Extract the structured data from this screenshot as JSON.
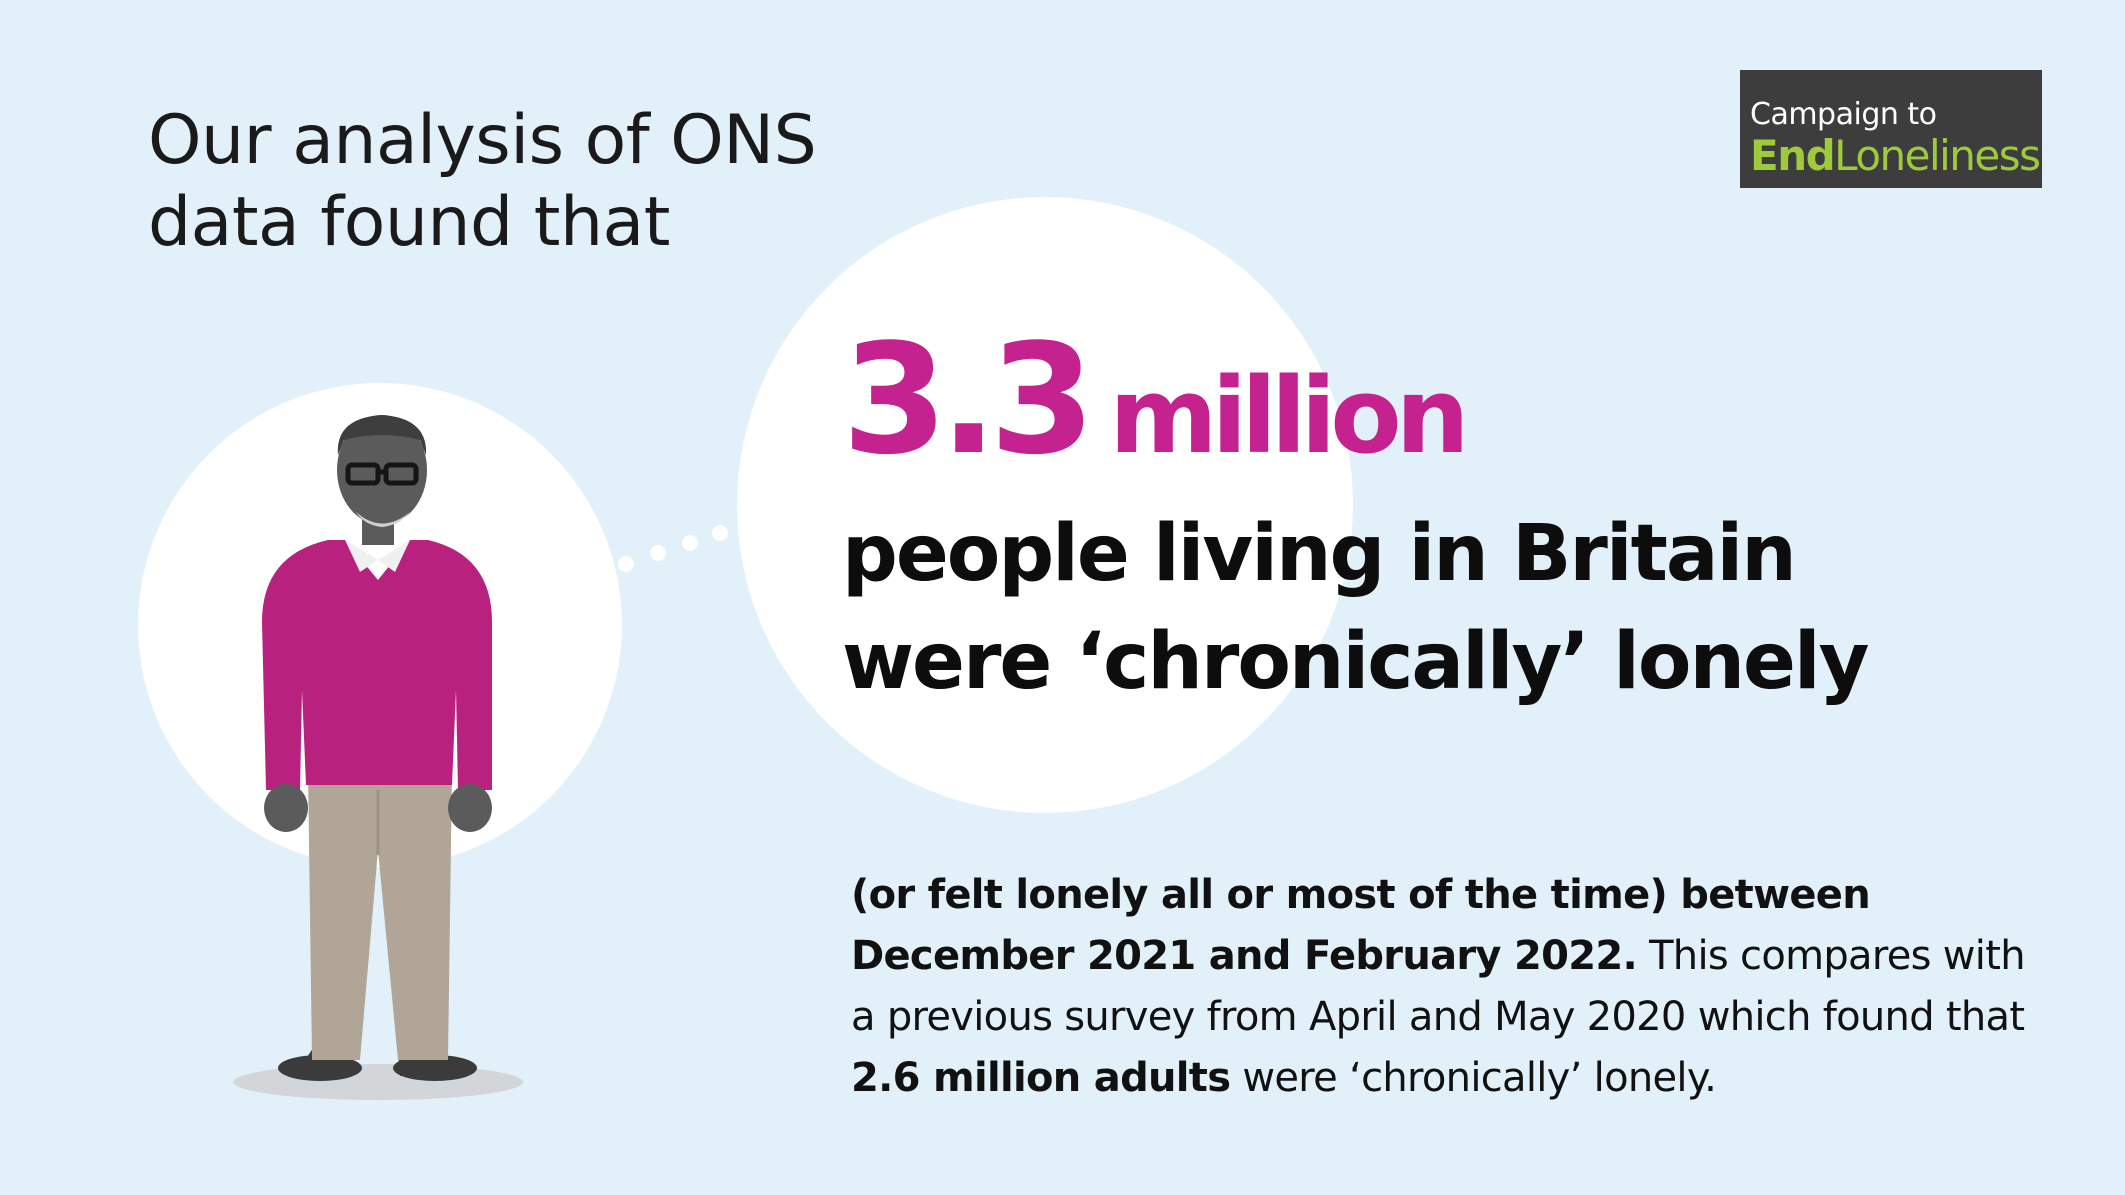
{
  "intro": {
    "line1": "Our analysis of ONS",
    "line2": "data found that"
  },
  "logo": {
    "line1": "Campaign to",
    "part_end": "End",
    "part_loneliness": "Loneliness",
    "bg_color": "#3d3d3d",
    "accent_color": "#9ecb3b"
  },
  "headline": {
    "number": "3.3",
    "unit": "million",
    "color": "#c4228f"
  },
  "statement": {
    "line1": "people living in Britain",
    "line2": "were ‘chronically’ lonely"
  },
  "detail": {
    "bold1": "(or felt lonely all or most of the time) between December 2021 and February 2022.",
    "text1": " This compares with a previous survey from April and May 2020 which found that ",
    "bold2": "2.6 million adults",
    "text2": " were ‘chronically’ lonely."
  },
  "illustration": {
    "subject": "older-man-icon",
    "sweater_color": "#b8227e",
    "trousers_color": "#b1a597",
    "skin_color": "#5b5b5b"
  },
  "colors": {
    "background": "#e2f1f9",
    "bubble": "#ffffff"
  }
}
